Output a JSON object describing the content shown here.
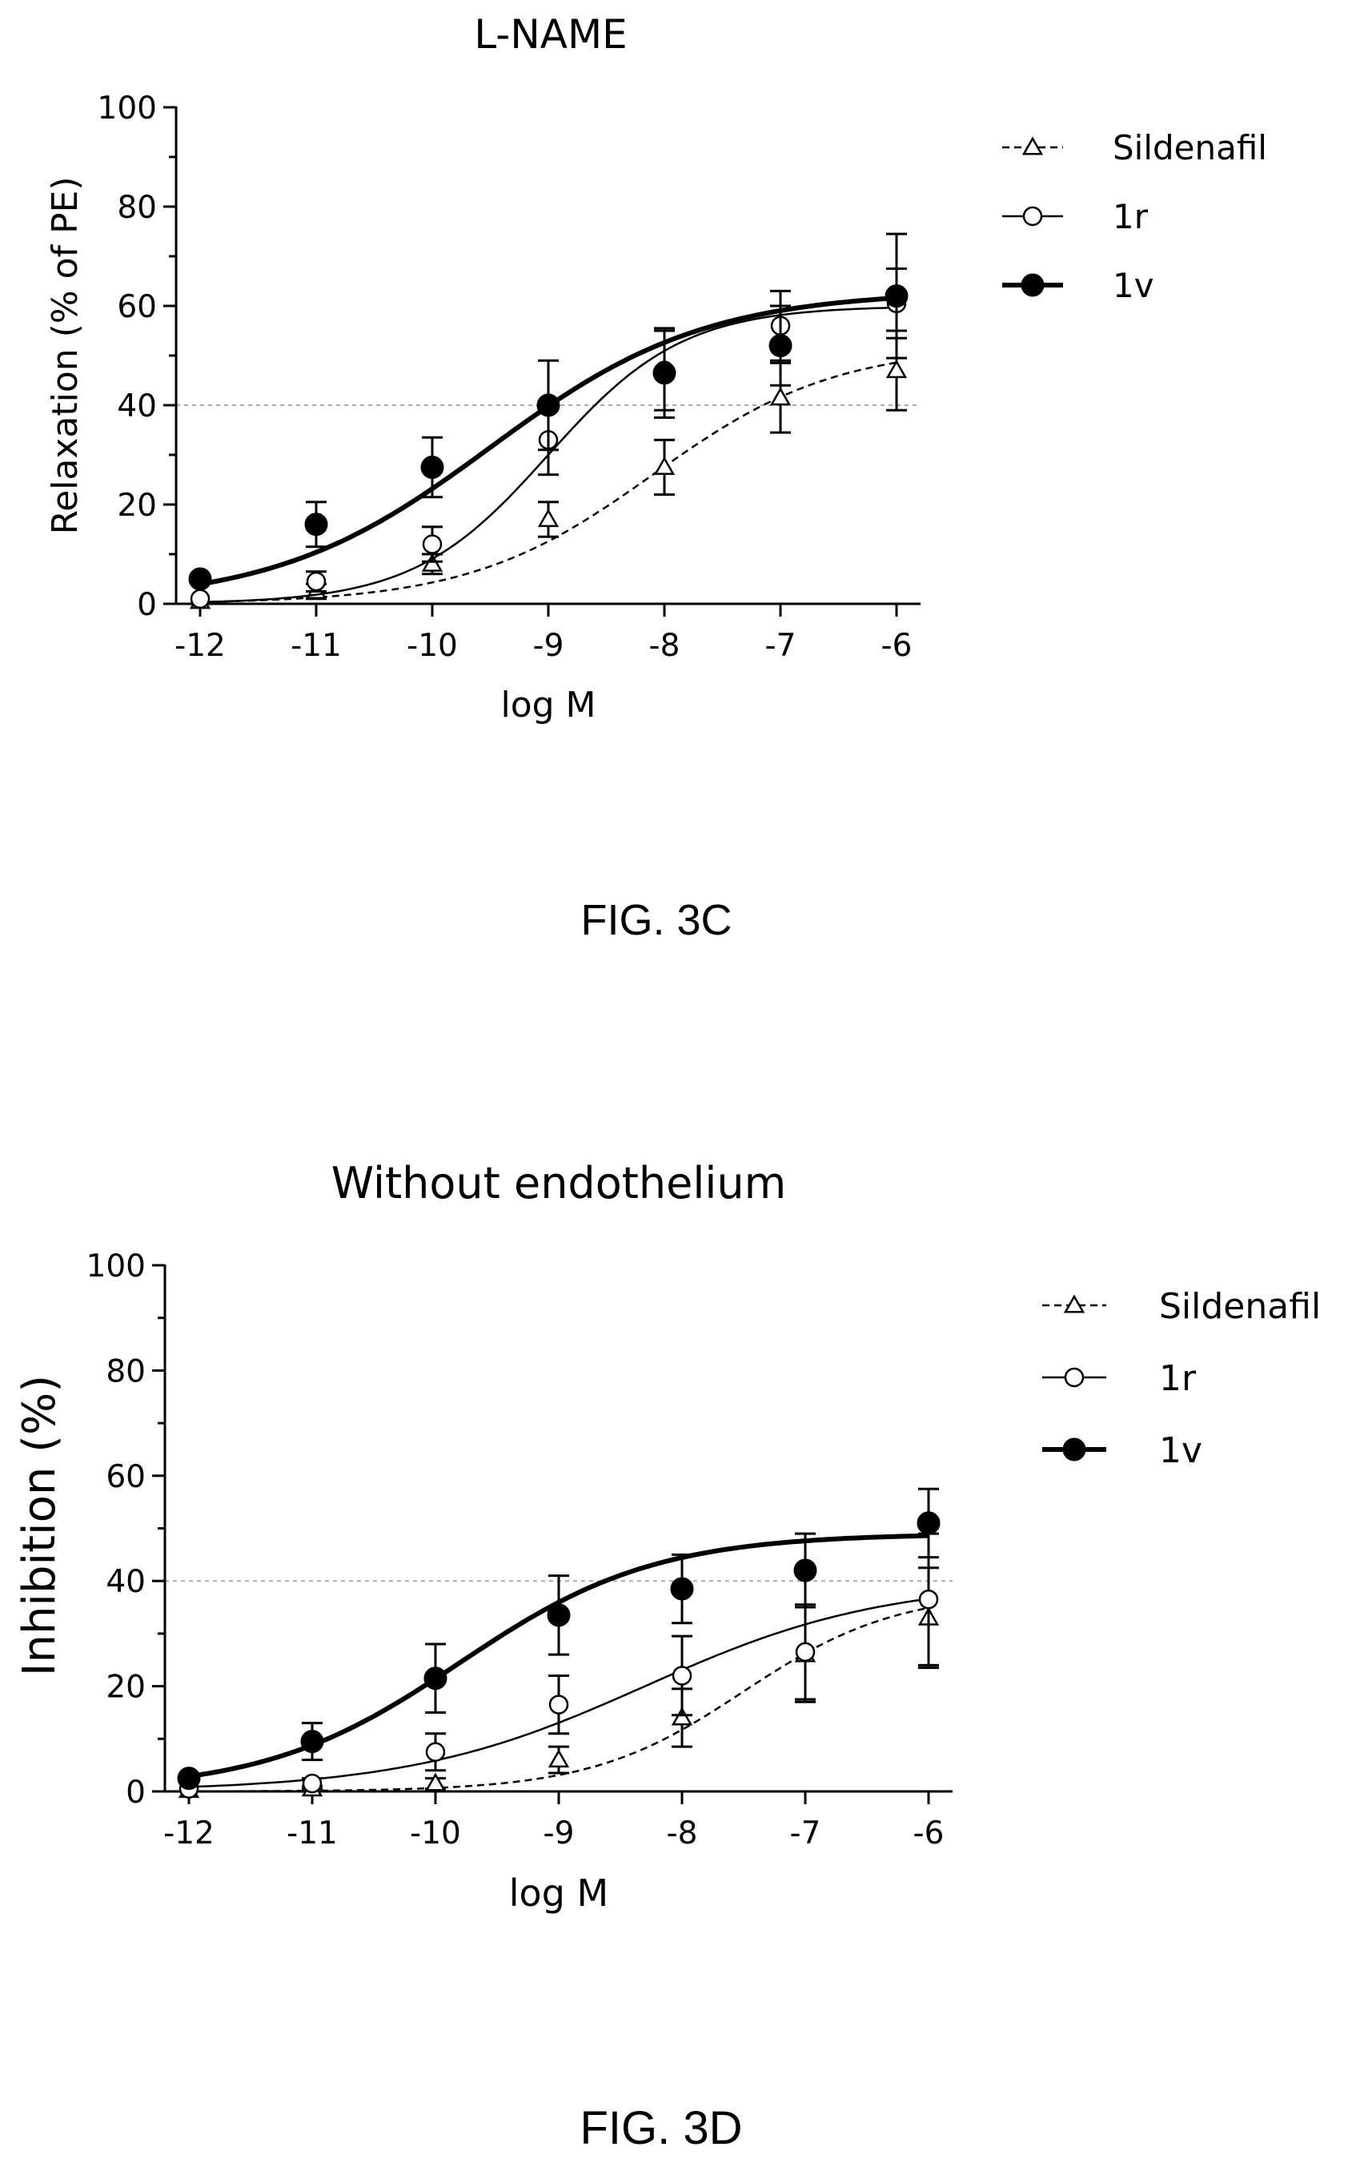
{
  "chart_data": [
    {
      "type": "line",
      "title": "L-NAME",
      "caption": "FIG. 3C",
      "xlabel": "log M",
      "ylabel": "Relaxation (% of PE)",
      "xlim": [
        -12,
        -6
      ],
      "ylim": [
        0,
        100
      ],
      "x_ticks": [
        "-12",
        "-11",
        "-10",
        "-9",
        "-8",
        "-7",
        "-6"
      ],
      "y_ticks": [
        "0",
        "20",
        "40",
        "60",
        "80",
        "100"
      ],
      "reference_line": 40,
      "legend_position": "top-right",
      "x": [
        -12,
        -11,
        -10,
        -9,
        -8,
        -7,
        -6
      ],
      "series": [
        {
          "name": "Sildenafil",
          "marker": "open-triangle",
          "line": "dashed",
          "values": [
            0.5,
            2.5,
            8,
            17,
            27.5,
            41.5,
            47
          ],
          "errors": [
            0,
            1.5,
            2,
            3.5,
            5.5,
            7,
            8
          ],
          "fit": {
            "bottom": 0,
            "top": 52,
            "logEC50": -8.1,
            "hill": 0.55
          }
        },
        {
          "name": "1r",
          "marker": "open-circle",
          "line": "solid",
          "values": [
            1,
            4.5,
            12,
            33,
            47,
            56,
            60.5
          ],
          "errors": [
            0,
            2,
            3.5,
            7,
            8,
            7,
            7
          ],
          "fit": {
            "bottom": 0,
            "top": 60,
            "logEC50": -9.0,
            "hill": 0.75
          }
        },
        {
          "name": "1v",
          "marker": "filled-circle",
          "line": "bold",
          "values": [
            5,
            16,
            27.5,
            40,
            46.5,
            52,
            62
          ],
          "errors": [
            0,
            4.5,
            6,
            9,
            9,
            8,
            12.5
          ],
          "fit": {
            "bottom": 0,
            "top": 63,
            "logEC50": -9.5,
            "hill": 0.47
          }
        }
      ]
    },
    {
      "type": "line",
      "title": "Without endothelium",
      "caption": "FIG. 3D",
      "xlabel": "log M",
      "ylabel": "Inhibition (%)",
      "xlim": [
        -12,
        -6
      ],
      "ylim": [
        0,
        100
      ],
      "x_ticks": [
        "-12",
        "-11",
        "-10",
        "-9",
        "-8",
        "-7",
        "-6"
      ],
      "y_ticks": [
        "0",
        "20",
        "40",
        "60",
        "80",
        "100"
      ],
      "reference_line": 40,
      "legend_position": "top-right",
      "x": [
        -12,
        -11,
        -10,
        -9,
        -8,
        -7,
        -6
      ],
      "series": [
        {
          "name": "Sildenafil",
          "marker": "open-triangle",
          "line": "dashed",
          "values": [
            0.2,
            0.5,
            1.5,
            6,
            14,
            26,
            33
          ],
          "errors": [
            0,
            0.5,
            1,
            2.5,
            5.5,
            9,
            9.5
          ],
          "fit": {
            "bottom": 0,
            "top": 38,
            "logEC50": -7.5,
            "hill": 0.7
          }
        },
        {
          "name": "1r",
          "marker": "open-circle",
          "line": "solid",
          "values": [
            0.5,
            1.5,
            7.5,
            16.5,
            22,
            26.5,
            36.5
          ],
          "errors": [
            0,
            1,
            3.5,
            5.5,
            7.5,
            9,
            12.5
          ],
          "fit": {
            "bottom": 0,
            "top": 40,
            "logEC50": -8.3,
            "hill": 0.45
          }
        },
        {
          "name": "1v",
          "marker": "filled-circle",
          "line": "bold",
          "values": [
            2.5,
            9.5,
            21.5,
            33.5,
            38.5,
            42,
            51
          ],
          "errors": [
            0,
            3.5,
            6.5,
            7.5,
            6.5,
            7,
            6.5
          ],
          "fit": {
            "bottom": 0,
            "top": 49,
            "logEC50": -9.8,
            "hill": 0.55
          }
        }
      ]
    }
  ]
}
